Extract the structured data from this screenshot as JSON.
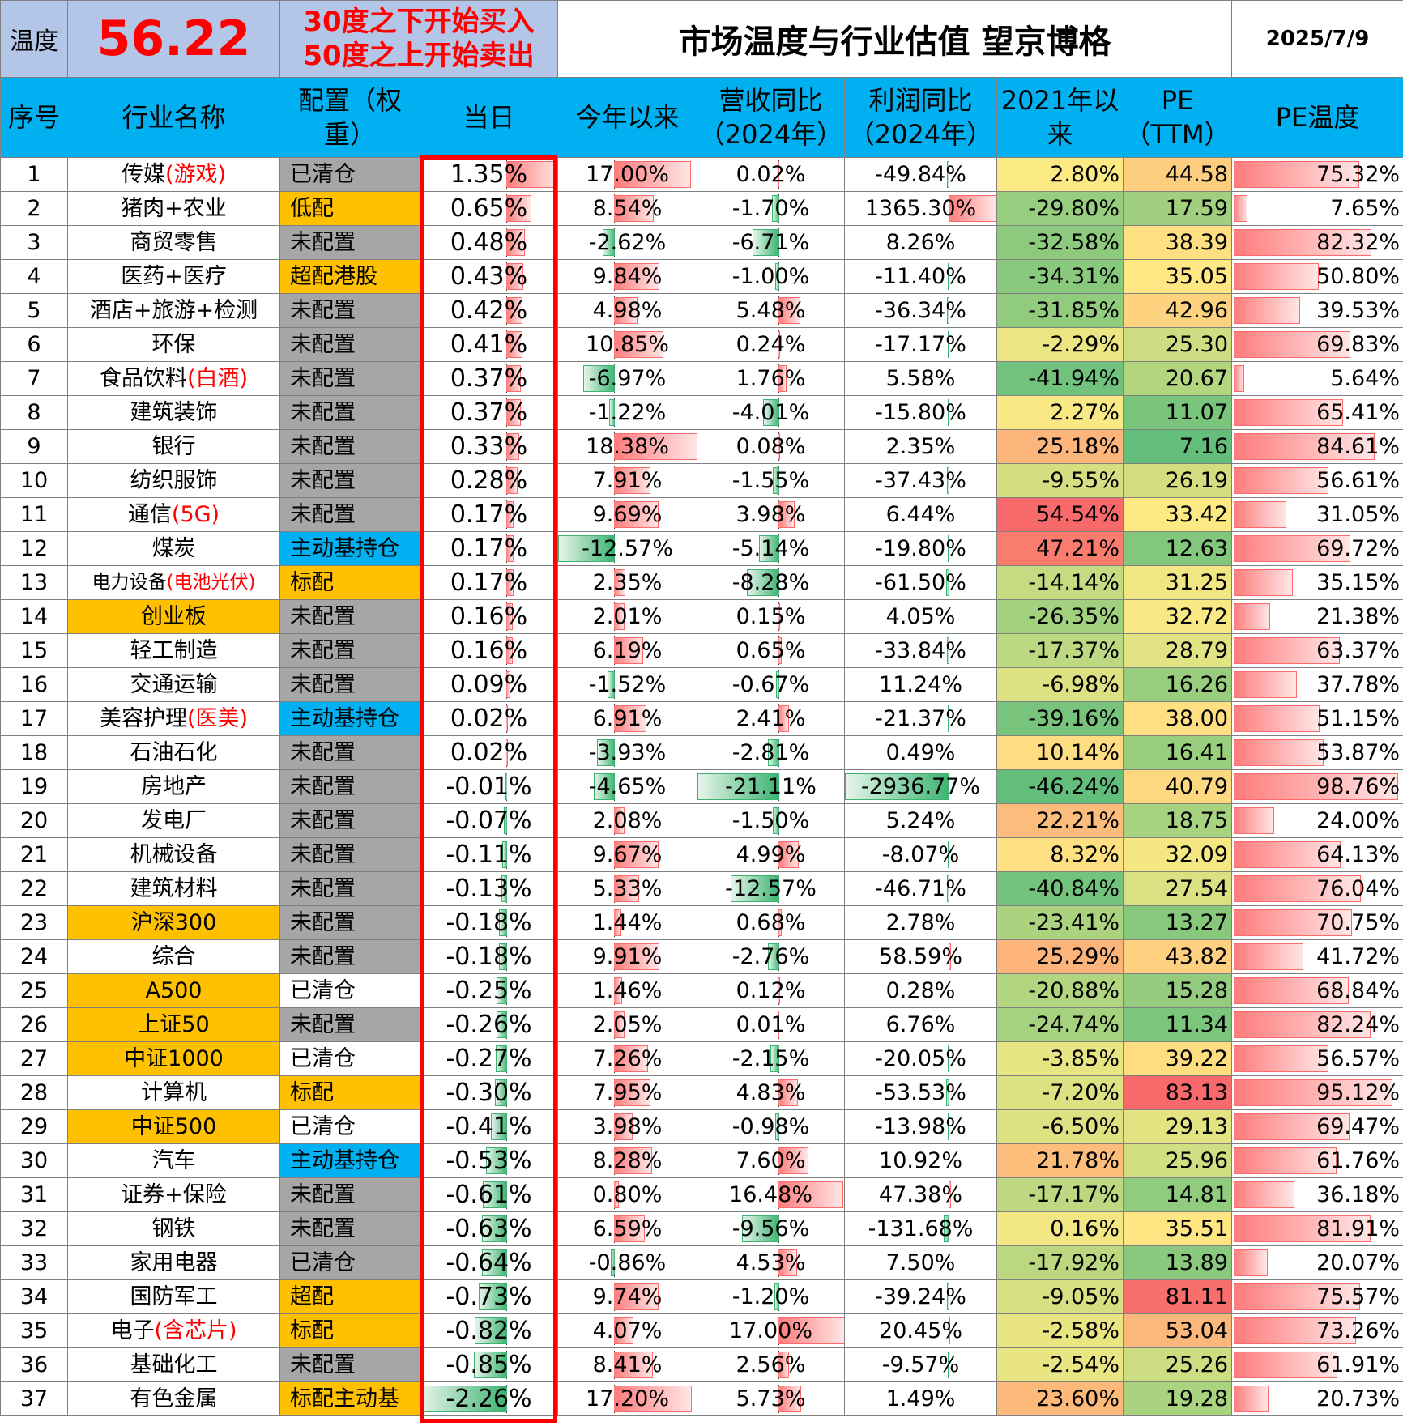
{
  "header": {
    "temp_label": "温度",
    "temp_value": "56.22",
    "rule_line1": "30度之下开始买入",
    "rule_line2": "50度之上开始卖出",
    "title": "市场温度与行业估值  望京博格",
    "date": "2025/7/9"
  },
  "columns": [
    "序号",
    "行业名称",
    "配置（权重）",
    "当日",
    "今年以来",
    "营收同比（2024年）",
    "利润同比（2024年）",
    "2021年以来",
    "PE（TTM）",
    "PE温度"
  ],
  "colors": {
    "header_blue": "#00b0f0",
    "orange": "#ffc000",
    "grey": "#a6a6a6",
    "red": "#ff0000"
  },
  "rows": [
    {
      "n": "1",
      "name": "传媒",
      "suffix": "(游戏)",
      "alloc": "已清仓",
      "ac": "grey",
      "day": "1.35%",
      "ytd": "17.00%",
      "rev": "0.02%",
      "profit": "-49.84%",
      "since": "2.80%",
      "pe": "44.58",
      "pet": "75.32%"
    },
    {
      "n": "2",
      "name": "猪肉+农业",
      "suffix": "",
      "alloc": "低配",
      "ac": "orange",
      "day": "0.65%",
      "ytd": "8.54%",
      "rev": "-1.70%",
      "profit": "1365.30%",
      "since": "-29.80%",
      "pe": "17.59",
      "pet": "7.65%"
    },
    {
      "n": "3",
      "name": "商贸零售",
      "suffix": "",
      "alloc": "未配置",
      "ac": "grey",
      "day": "0.48%",
      "ytd": "-2.62%",
      "rev": "-6.71%",
      "profit": "8.26%",
      "since": "-32.58%",
      "pe": "38.39",
      "pet": "82.32%"
    },
    {
      "n": "4",
      "name": "医药+医疗",
      "suffix": "",
      "alloc": "超配港股",
      "ac": "orange",
      "day": "0.43%",
      "ytd": "9.84%",
      "rev": "-1.00%",
      "profit": "-11.40%",
      "since": "-34.31%",
      "pe": "35.05",
      "pet": "50.80%"
    },
    {
      "n": "5",
      "name": "酒店+旅游+检测",
      "suffix": "",
      "alloc": "未配置",
      "ac": "grey",
      "day": "0.42%",
      "ytd": "4.98%",
      "rev": "5.48%",
      "profit": "-36.34%",
      "since": "-31.85%",
      "pe": "42.96",
      "pet": "39.53%"
    },
    {
      "n": "6",
      "name": "环保",
      "suffix": "",
      "alloc": "未配置",
      "ac": "grey",
      "day": "0.41%",
      "ytd": "10.85%",
      "rev": "0.24%",
      "profit": "-17.17%",
      "since": "-2.29%",
      "pe": "25.30",
      "pet": "69.83%"
    },
    {
      "n": "7",
      "name": "食品饮料",
      "suffix": "(白酒)",
      "alloc": "未配置",
      "ac": "grey",
      "day": "0.37%",
      "ytd": "-6.97%",
      "rev": "1.76%",
      "profit": "5.58%",
      "since": "-41.94%",
      "pe": "20.67",
      "pet": "5.64%"
    },
    {
      "n": "8",
      "name": "建筑装饰",
      "suffix": "",
      "alloc": "未配置",
      "ac": "grey",
      "day": "0.37%",
      "ytd": "-1.22%",
      "rev": "-4.01%",
      "profit": "-15.80%",
      "since": "2.27%",
      "pe": "11.07",
      "pet": "65.41%"
    },
    {
      "n": "9",
      "name": "银行",
      "suffix": "",
      "alloc": "未配置",
      "ac": "grey",
      "day": "0.33%",
      "ytd": "18.38%",
      "rev": "0.08%",
      "profit": "2.35%",
      "since": "25.18%",
      "pe": "7.16",
      "pet": "84.61%"
    },
    {
      "n": "10",
      "name": "纺织服饰",
      "suffix": "",
      "alloc": "未配置",
      "ac": "grey",
      "day": "0.28%",
      "ytd": "7.91%",
      "rev": "-1.55%",
      "profit": "-37.43%",
      "since": "-9.55%",
      "pe": "26.19",
      "pet": "56.61%"
    },
    {
      "n": "11",
      "name": "通信",
      "suffix": "(5G)",
      "alloc": "未配置",
      "ac": "grey",
      "day": "0.17%",
      "ytd": "9.69%",
      "rev": "3.98%",
      "profit": "6.44%",
      "since": "54.54%",
      "pe": "33.42",
      "pet": "31.05%"
    },
    {
      "n": "12",
      "name": "煤炭",
      "suffix": "",
      "alloc": "主动基持仓",
      "ac": "blue",
      "day": "0.17%",
      "ytd": "-12.57%",
      "rev": "-5.14%",
      "profit": "-19.80%",
      "since": "47.21%",
      "pe": "12.63",
      "pet": "69.72%"
    },
    {
      "n": "13",
      "name": "电力设备",
      "suffix": "(电池光伏)",
      "alloc": "标配",
      "ac": "orange",
      "day": "0.17%",
      "ytd": "2.35%",
      "rev": "-8.28%",
      "profit": "-61.50%",
      "since": "-14.14%",
      "pe": "31.25",
      "pet": "35.15%",
      "small": true
    },
    {
      "n": "14",
      "name": "创业板",
      "suffix": "",
      "alloc": "未配置",
      "ac": "grey",
      "day": "0.16%",
      "ytd": "2.01%",
      "rev": "0.15%",
      "profit": "4.05%",
      "since": "-26.35%",
      "pe": "32.72",
      "pet": "21.38%",
      "index": true
    },
    {
      "n": "15",
      "name": "轻工制造",
      "suffix": "",
      "alloc": "未配置",
      "ac": "grey",
      "day": "0.16%",
      "ytd": "6.19%",
      "rev": "0.65%",
      "profit": "-33.84%",
      "since": "-17.37%",
      "pe": "28.79",
      "pet": "63.37%"
    },
    {
      "n": "16",
      "name": "交通运输",
      "suffix": "",
      "alloc": "未配置",
      "ac": "grey",
      "day": "0.09%",
      "ytd": "-1.52%",
      "rev": "-0.67%",
      "profit": "11.24%",
      "since": "-6.98%",
      "pe": "16.26",
      "pet": "37.78%"
    },
    {
      "n": "17",
      "name": "美容护理",
      "suffix": "(医美)",
      "alloc": "主动基持仓",
      "ac": "blue",
      "day": "0.02%",
      "ytd": "6.91%",
      "rev": "2.41%",
      "profit": "-21.37%",
      "since": "-39.16%",
      "pe": "38.00",
      "pet": "51.15%"
    },
    {
      "n": "18",
      "name": "石油石化",
      "suffix": "",
      "alloc": "未配置",
      "ac": "grey",
      "day": "0.02%",
      "ytd": "-3.93%",
      "rev": "-2.81%",
      "profit": "0.49%",
      "since": "10.14%",
      "pe": "16.41",
      "pet": "53.87%"
    },
    {
      "n": "19",
      "name": "房地产",
      "suffix": "",
      "alloc": "未配置",
      "ac": "grey",
      "day": "-0.01%",
      "ytd": "-4.65%",
      "rev": "-21.11%",
      "profit": "-2936.77%",
      "since": "-46.24%",
      "pe": "40.79",
      "pet": "98.76%"
    },
    {
      "n": "20",
      "name": "发电厂",
      "suffix": "",
      "alloc": "未配置",
      "ac": "grey",
      "day": "-0.07%",
      "ytd": "2.08%",
      "rev": "-1.50%",
      "profit": "5.24%",
      "since": "22.21%",
      "pe": "18.75",
      "pet": "24.00%"
    },
    {
      "n": "21",
      "name": "机械设备",
      "suffix": "",
      "alloc": "未配置",
      "ac": "grey",
      "day": "-0.11%",
      "ytd": "9.67%",
      "rev": "4.99%",
      "profit": "-8.07%",
      "since": "8.32%",
      "pe": "32.09",
      "pet": "64.13%"
    },
    {
      "n": "22",
      "name": "建筑材料",
      "suffix": "",
      "alloc": "未配置",
      "ac": "grey",
      "day": "-0.13%",
      "ytd": "5.33%",
      "rev": "-12.57%",
      "profit": "-46.71%",
      "since": "-40.84%",
      "pe": "27.54",
      "pet": "76.04%"
    },
    {
      "n": "23",
      "name": "沪深300",
      "suffix": "",
      "alloc": "未配置",
      "ac": "grey",
      "day": "-0.18%",
      "ytd": "1.44%",
      "rev": "0.68%",
      "profit": "2.78%",
      "since": "-23.41%",
      "pe": "13.27",
      "pet": "70.75%",
      "index": true
    },
    {
      "n": "24",
      "name": "综合",
      "suffix": "",
      "alloc": "未配置",
      "ac": "grey",
      "day": "-0.18%",
      "ytd": "9.91%",
      "rev": "-2.76%",
      "profit": "58.59%",
      "since": "25.29%",
      "pe": "43.82",
      "pet": "41.72%"
    },
    {
      "n": "25",
      "name": "A500",
      "suffix": "",
      "alloc": "已清仓",
      "ac": "white",
      "day": "-0.25%",
      "ytd": "1.46%",
      "rev": "0.12%",
      "profit": "0.28%",
      "since": "-20.88%",
      "pe": "15.28",
      "pet": "68.84%",
      "index": true
    },
    {
      "n": "26",
      "name": "上证50",
      "suffix": "",
      "alloc": "未配置",
      "ac": "grey",
      "day": "-0.26%",
      "ytd": "2.05%",
      "rev": "0.01%",
      "profit": "6.76%",
      "since": "-24.74%",
      "pe": "11.34",
      "pet": "82.24%",
      "index": true
    },
    {
      "n": "27",
      "name": "中证1000",
      "suffix": "",
      "alloc": "已清仓",
      "ac": "white",
      "day": "-0.27%",
      "ytd": "7.26%",
      "rev": "-2.15%",
      "profit": "-20.05%",
      "since": "-3.85%",
      "pe": "39.22",
      "pet": "56.57%",
      "index": true
    },
    {
      "n": "28",
      "name": "计算机",
      "suffix": "",
      "alloc": "标配",
      "ac": "orange",
      "day": "-0.30%",
      "ytd": "7.95%",
      "rev": "4.83%",
      "profit": "-53.53%",
      "since": "-7.20%",
      "pe": "83.13",
      "pet": "95.12%"
    },
    {
      "n": "29",
      "name": "中证500",
      "suffix": "",
      "alloc": "已清仓",
      "ac": "white",
      "day": "-0.41%",
      "ytd": "3.98%",
      "rev": "-0.98%",
      "profit": "-13.98%",
      "since": "-6.50%",
      "pe": "29.13",
      "pet": "69.47%",
      "index": true
    },
    {
      "n": "30",
      "name": "汽车",
      "suffix": "",
      "alloc": "主动基持仓",
      "ac": "blue",
      "day": "-0.53%",
      "ytd": "8.28%",
      "rev": "7.60%",
      "profit": "10.92%",
      "since": "21.78%",
      "pe": "25.96",
      "pet": "61.76%"
    },
    {
      "n": "31",
      "name": "证券+保险",
      "suffix": "",
      "alloc": "未配置",
      "ac": "grey",
      "day": "-0.61%",
      "ytd": "0.80%",
      "rev": "16.48%",
      "profit": "47.38%",
      "since": "-17.17%",
      "pe": "14.81",
      "pet": "36.18%"
    },
    {
      "n": "32",
      "name": "钢铁",
      "suffix": "",
      "alloc": "未配置",
      "ac": "grey",
      "day": "-0.63%",
      "ytd": "6.59%",
      "rev": "-9.56%",
      "profit": "-131.68%",
      "since": "0.16%",
      "pe": "35.51",
      "pet": "81.91%"
    },
    {
      "n": "33",
      "name": "家用电器",
      "suffix": "",
      "alloc": "已清仓",
      "ac": "grey",
      "day": "-0.64%",
      "ytd": "-0.86%",
      "rev": "4.53%",
      "profit": "7.50%",
      "since": "-17.92%",
      "pe": "13.89",
      "pet": "20.07%"
    },
    {
      "n": "34",
      "name": "国防军工",
      "suffix": "",
      "alloc": "超配",
      "ac": "orange",
      "day": "-0.73%",
      "ytd": "9.74%",
      "rev": "-1.20%",
      "profit": "-39.24%",
      "since": "-9.05%",
      "pe": "81.11",
      "pet": "75.57%"
    },
    {
      "n": "35",
      "name": "电子",
      "suffix": "(含芯片)",
      "alloc": "标配",
      "ac": "orange",
      "day": "-0.82%",
      "ytd": "4.07%",
      "rev": "17.00%",
      "profit": "20.45%",
      "since": "-2.58%",
      "pe": "53.04",
      "pet": "73.26%"
    },
    {
      "n": "36",
      "name": "基础化工",
      "suffix": "",
      "alloc": "未配置",
      "ac": "grey",
      "day": "-0.85%",
      "ytd": "8.41%",
      "rev": "2.56%",
      "profit": "-9.57%",
      "since": "-2.54%",
      "pe": "25.26",
      "pet": "61.91%"
    },
    {
      "n": "37",
      "name": "有色金属",
      "suffix": "",
      "alloc": "标配主动基",
      "ac": "orange",
      "day": "-2.26%",
      "ytd": "17.20%",
      "rev": "5.73%",
      "profit": "1.49%",
      "since": "23.60%",
      "pe": "19.28",
      "pet": "20.73%"
    }
  ]
}
